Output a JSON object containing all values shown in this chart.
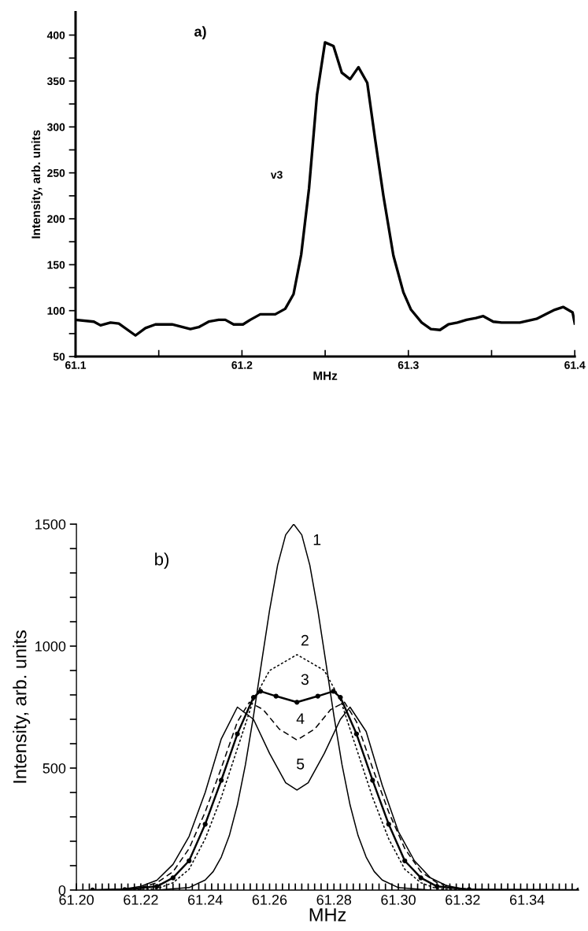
{
  "chart_data": [
    {
      "type": "line",
      "xlabel": "MHz",
      "ylabel": "Intensity, arb. units",
      "xlim": [
        61.1,
        61.4
      ],
      "ylim": [
        50,
        425
      ],
      "xticks": [
        61.1,
        {
          "value": 61.15,
          "label": null
        },
        61.2,
        {
          "value": 61.25,
          "label": null
        },
        61.3,
        {
          "value": 61.35,
          "label": null
        },
        61.4
      ],
      "yticks": [
        50,
        {
          "value": 75,
          "label": null
        },
        100,
        {
          "value": 125,
          "label": null
        },
        150,
        {
          "value": 175,
          "label": null
        },
        200,
        {
          "value": 225,
          "label": null
        },
        250,
        {
          "value": 275,
          "label": null
        },
        300,
        {
          "value": 325,
          "label": null
        },
        350,
        {
          "value": 375,
          "label": null
        },
        400
      ],
      "grid": false,
      "marker": "none",
      "line_style": "solid",
      "annotations": [
        "a)",
        "v3"
      ],
      "series": [
        {
          "color": "#000000",
          "x": [
            61.1,
            61.111,
            61.115,
            61.121,
            61.126,
            61.136,
            61.142,
            61.148,
            61.158,
            61.169,
            61.174,
            61.18,
            61.186,
            61.19,
            61.195,
            61.2006,
            61.205,
            61.211,
            61.216,
            61.22,
            61.226,
            61.231,
            61.2356,
            61.2403,
            61.2451,
            61.2499,
            61.255,
            61.26,
            61.265,
            61.27,
            61.2753,
            61.28,
            61.285,
            61.291,
            61.297,
            61.3016,
            61.308,
            61.3135,
            61.319,
            61.324,
            61.3295,
            61.335,
            61.3406,
            61.345,
            61.351,
            61.356,
            61.367,
            61.377,
            61.3835,
            61.388,
            61.393,
            61.3987,
            61.4
          ],
          "values": [
            90,
            88,
            84,
            87,
            86,
            73,
            81,
            85,
            85,
            80,
            82,
            88,
            90,
            90,
            85,
            85,
            90,
            96,
            96,
            96,
            102,
            118,
            161,
            233,
            335,
            392,
            388,
            359,
            352,
            365,
            348,
            287,
            225,
            160,
            120,
            101,
            87,
            80,
            79,
            85,
            87,
            90,
            92,
            94,
            88,
            87,
            87,
            91,
            97,
            101,
            104,
            98,
            86
          ]
        }
      ]
    },
    {
      "type": "line",
      "xlabel": "MHz",
      "ylabel": "Intensity, arb. units",
      "xlim": [
        61.2,
        61.356
      ],
      "ylim": [
        0,
        1500
      ],
      "xticks": [
        {
          "value": 61.2,
          "label": "61.20"
        },
        {
          "value": 61.202,
          "label": null
        },
        {
          "value": 61.204,
          "label": null
        },
        {
          "value": 61.206,
          "label": null
        },
        {
          "value": 61.208,
          "label": null
        },
        {
          "value": 61.21,
          "label": null
        },
        {
          "value": 61.212,
          "label": null
        },
        {
          "value": 61.214,
          "label": null
        },
        {
          "value": 61.216,
          "label": null
        },
        {
          "value": 61.218,
          "label": null
        },
        {
          "value": 61.22,
          "label": "61.22"
        },
        {
          "value": 61.222,
          "label": null
        },
        {
          "value": 61.224,
          "label": null
        },
        {
          "value": 61.226,
          "label": null
        },
        {
          "value": 61.228,
          "label": null
        },
        {
          "value": 61.23,
          "label": null
        },
        {
          "value": 61.232,
          "label": null
        },
        {
          "value": 61.234,
          "label": null
        },
        {
          "value": 61.236,
          "label": null
        },
        {
          "value": 61.238,
          "label": null
        },
        {
          "value": 61.24,
          "label": "61.24"
        },
        {
          "value": 61.242,
          "label": null
        },
        {
          "value": 61.244,
          "label": null
        },
        {
          "value": 61.246,
          "label": null
        },
        {
          "value": 61.248,
          "label": null
        },
        {
          "value": 61.25,
          "label": null
        },
        {
          "value": 61.252,
          "label": null
        },
        {
          "value": 61.254,
          "label": null
        },
        {
          "value": 61.256,
          "label": null
        },
        {
          "value": 61.258,
          "label": null
        },
        {
          "value": 61.26,
          "label": "61.26"
        },
        {
          "value": 61.262,
          "label": null
        },
        {
          "value": 61.264,
          "label": null
        },
        {
          "value": 61.266,
          "label": null
        },
        {
          "value": 61.268,
          "label": null
        },
        {
          "value": 61.27,
          "label": null
        },
        {
          "value": 61.272,
          "label": null
        },
        {
          "value": 61.274,
          "label": null
        },
        {
          "value": 61.276,
          "label": null
        },
        {
          "value": 61.278,
          "label": null
        },
        {
          "value": 61.28,
          "label": "61.28"
        },
        {
          "value": 61.282,
          "label": null
        },
        {
          "value": 61.284,
          "label": null
        },
        {
          "value": 61.286,
          "label": null
        },
        {
          "value": 61.288,
          "label": null
        },
        {
          "value": 61.29,
          "label": null
        },
        {
          "value": 61.292,
          "label": null
        },
        {
          "value": 61.294,
          "label": null
        },
        {
          "value": 61.296,
          "label": null
        },
        {
          "value": 61.298,
          "label": null
        },
        {
          "value": 61.3,
          "label": "61.30"
        },
        {
          "value": 61.302,
          "label": null
        },
        {
          "value": 61.304,
          "label": null
        },
        {
          "value": 61.306,
          "label": null
        },
        {
          "value": 61.308,
          "label": null
        },
        {
          "value": 61.31,
          "label": null
        },
        {
          "value": 61.312,
          "label": null
        },
        {
          "value": 61.314,
          "label": null
        },
        {
          "value": 61.316,
          "label": null
        },
        {
          "value": 61.318,
          "label": null
        },
        {
          "value": 61.32,
          "label": "61.32"
        },
        {
          "value": 61.322,
          "label": null
        },
        {
          "value": 61.324,
          "label": null
        },
        {
          "value": 61.326,
          "label": null
        },
        {
          "value": 61.328,
          "label": null
        },
        {
          "value": 61.33,
          "label": null
        },
        {
          "value": 61.332,
          "label": null
        },
        {
          "value": 61.334,
          "label": null
        },
        {
          "value": 61.336,
          "label": null
        },
        {
          "value": 61.338,
          "label": null
        },
        {
          "value": 61.34,
          "label": "61.34"
        },
        {
          "value": 61.342,
          "label": null
        },
        {
          "value": 61.344,
          "label": null
        },
        {
          "value": 61.346,
          "label": null
        },
        {
          "value": 61.348,
          "label": null
        },
        {
          "value": 61.35,
          "label": null
        },
        {
          "value": 61.352,
          "label": null
        },
        {
          "value": 61.354,
          "label": null
        }
      ],
      "yticks": [
        0,
        {
          "value": 100,
          "label": null
        },
        {
          "value": 200,
          "label": null
        },
        {
          "value": 300,
          "label": null
        },
        {
          "value": 400,
          "label": null
        },
        500,
        {
          "value": 600,
          "label": null
        },
        {
          "value": 700,
          "label": null
        },
        {
          "value": 800,
          "label": null
        },
        {
          "value": 900,
          "label": null
        },
        1000,
        {
          "value": 1100,
          "label": null
        },
        {
          "value": 1200,
          "label": null
        },
        {
          "value": 1300,
          "label": null
        },
        {
          "value": 1400,
          "label": null
        },
        1500
      ],
      "grid": false,
      "annotations": [
        "b)",
        "1",
        "2",
        "3",
        "4",
        "5"
      ],
      "series": [
        {
          "color": "#000000",
          "line_style": "solid",
          "marker": "none",
          "x": [
            61.225,
            61.235,
            61.24,
            61.2425,
            61.245,
            61.2475,
            61.25,
            61.2525,
            61.255,
            61.2575,
            61.26,
            61.2625,
            61.265,
            61.2675,
            61.27,
            61.2725,
            61.275,
            61.2775,
            61.28,
            61.2825,
            61.285,
            61.2875,
            61.29,
            61.2925,
            61.295,
            61.3,
            61.31
          ],
          "values": [
            0,
            10,
            41,
            76,
            135,
            223,
            349,
            514,
            713,
            932,
            1147,
            1332,
            1456,
            1500,
            1456,
            1332,
            1147,
            932,
            713,
            514,
            349,
            223,
            135,
            76,
            41,
            10,
            0
          ]
        },
        {
          "color": "#000000",
          "line_style": "dotted",
          "marker": "none",
          "x": [
            61.215,
            61.225,
            61.23,
            61.235,
            61.24,
            61.245,
            61.25,
            61.255,
            61.26,
            61.2685,
            61.277,
            61.282,
            61.287,
            61.292,
            61.297,
            61.302,
            61.307,
            61.312,
            61.322
          ],
          "values": [
            0,
            5,
            30,
            85,
            210,
            380,
            580,
            780,
            900,
            965,
            900,
            780,
            580,
            380,
            210,
            85,
            30,
            5,
            0
          ]
        },
        {
          "color": "#000000",
          "line_style": "solid",
          "marker": "circle",
          "x": [
            61.205,
            61.215,
            61.225,
            61.23,
            61.235,
            61.24,
            61.245,
            61.25,
            61.255,
            61.2572,
            61.262,
            61.2685,
            61.275,
            61.2798,
            61.282,
            61.287,
            61.292,
            61.297,
            61.302,
            61.307,
            61.312,
            61.322,
            61.356
          ],
          "values": [
            0,
            2,
            15,
            50,
            120,
            270,
            450,
            640,
            790,
            815,
            795,
            770,
            795,
            815,
            790,
            640,
            450,
            270,
            120,
            50,
            15,
            2,
            0
          ]
        },
        {
          "color": "#000000",
          "line_style": "dashed",
          "marker": "none",
          "x": [
            61.205,
            61.215,
            61.22,
            61.225,
            61.23,
            61.235,
            61.24,
            61.245,
            61.25,
            61.2537,
            61.258,
            61.263,
            61.2685,
            61.274,
            61.279,
            61.2833,
            61.287,
            61.292,
            61.297,
            61.302,
            61.307,
            61.312,
            61.317,
            61.322,
            61.332
          ],
          "values": [
            0,
            3,
            10,
            30,
            75,
            170,
            320,
            500,
            690,
            770,
            740,
            660,
            615,
            660,
            740,
            770,
            690,
            500,
            320,
            170,
            75,
            30,
            10,
            3,
            0
          ]
        },
        {
          "color": "#000000",
          "line_style": "solid",
          "marker": "none",
          "x": [
            61.205,
            61.215,
            61.22,
            61.225,
            61.23,
            61.235,
            61.24,
            61.245,
            61.25,
            61.255,
            61.26,
            61.265,
            61.2685,
            61.272,
            61.277,
            61.282,
            61.285,
            61.29,
            61.295,
            61.3,
            61.305,
            61.31,
            61.315,
            61.32,
            61.33
          ],
          "values": [
            0,
            5,
            15,
            40,
            105,
            220,
            400,
            620,
            750,
            700,
            560,
            440,
            410,
            440,
            560,
            700,
            750,
            650,
            430,
            240,
            120,
            50,
            18,
            5,
            0
          ]
        }
      ]
    }
  ]
}
